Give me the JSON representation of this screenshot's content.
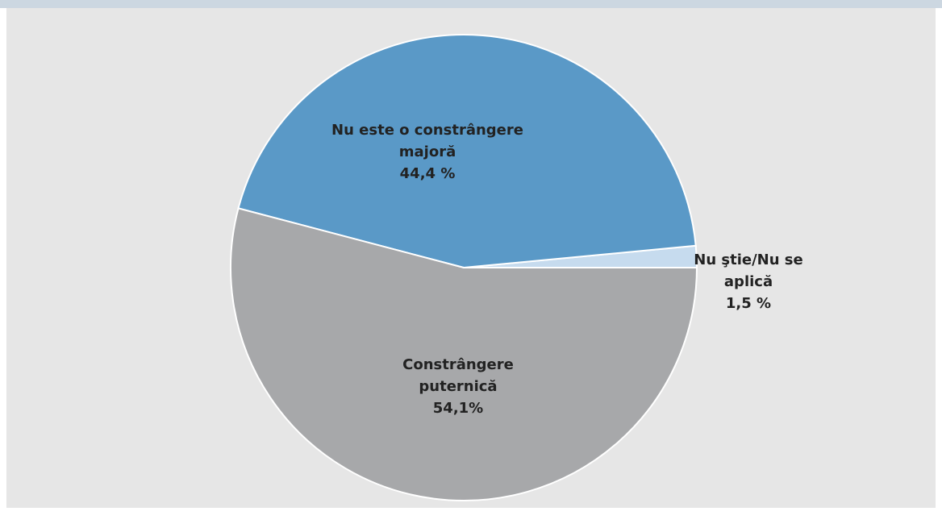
{
  "chart_data": {
    "type": "pie",
    "categories": [
      "Nu ştie/Nu se aplică",
      "Nu este o constrângere majoră",
      "Constrângere puternică"
    ],
    "values": [
      1.5,
      44.4,
      54.1
    ],
    "value_labels": [
      "1,5 %",
      "44,4 %",
      "54,1%"
    ],
    "colors": [
      "#c6dbee",
      "#5a99c7",
      "#a7a8aa"
    ]
  }
}
